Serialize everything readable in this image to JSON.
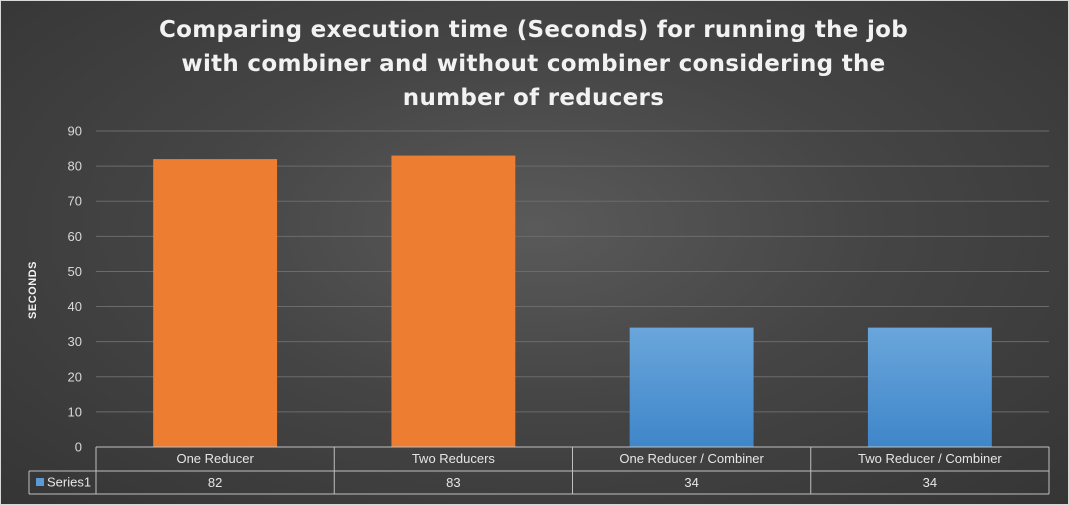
{
  "chart_data": {
    "type": "bar",
    "title": "Comparing execution time (Seconds) for running the job with combiner and without combiner considering the number of reducers",
    "ylabel": "SECONDS",
    "xlabel": "",
    "categories": [
      "One Reducer",
      "Two Reducers",
      "One Reducer / Combiner",
      "Two Reducer / Combiner"
    ],
    "series": [
      {
        "name": "Series1",
        "values": [
          82,
          83,
          34,
          34
        ]
      }
    ],
    "bar_colors": [
      "#ed7d31",
      "#ed7d31",
      "#5b9bd5",
      "#5b9bd5"
    ],
    "legend_color": "#5b9bd5",
    "ylim": [
      0,
      90
    ],
    "yticks": [
      0,
      10,
      20,
      30,
      40,
      50,
      60,
      70,
      80,
      90
    ],
    "grid": true,
    "data_table": true
  }
}
